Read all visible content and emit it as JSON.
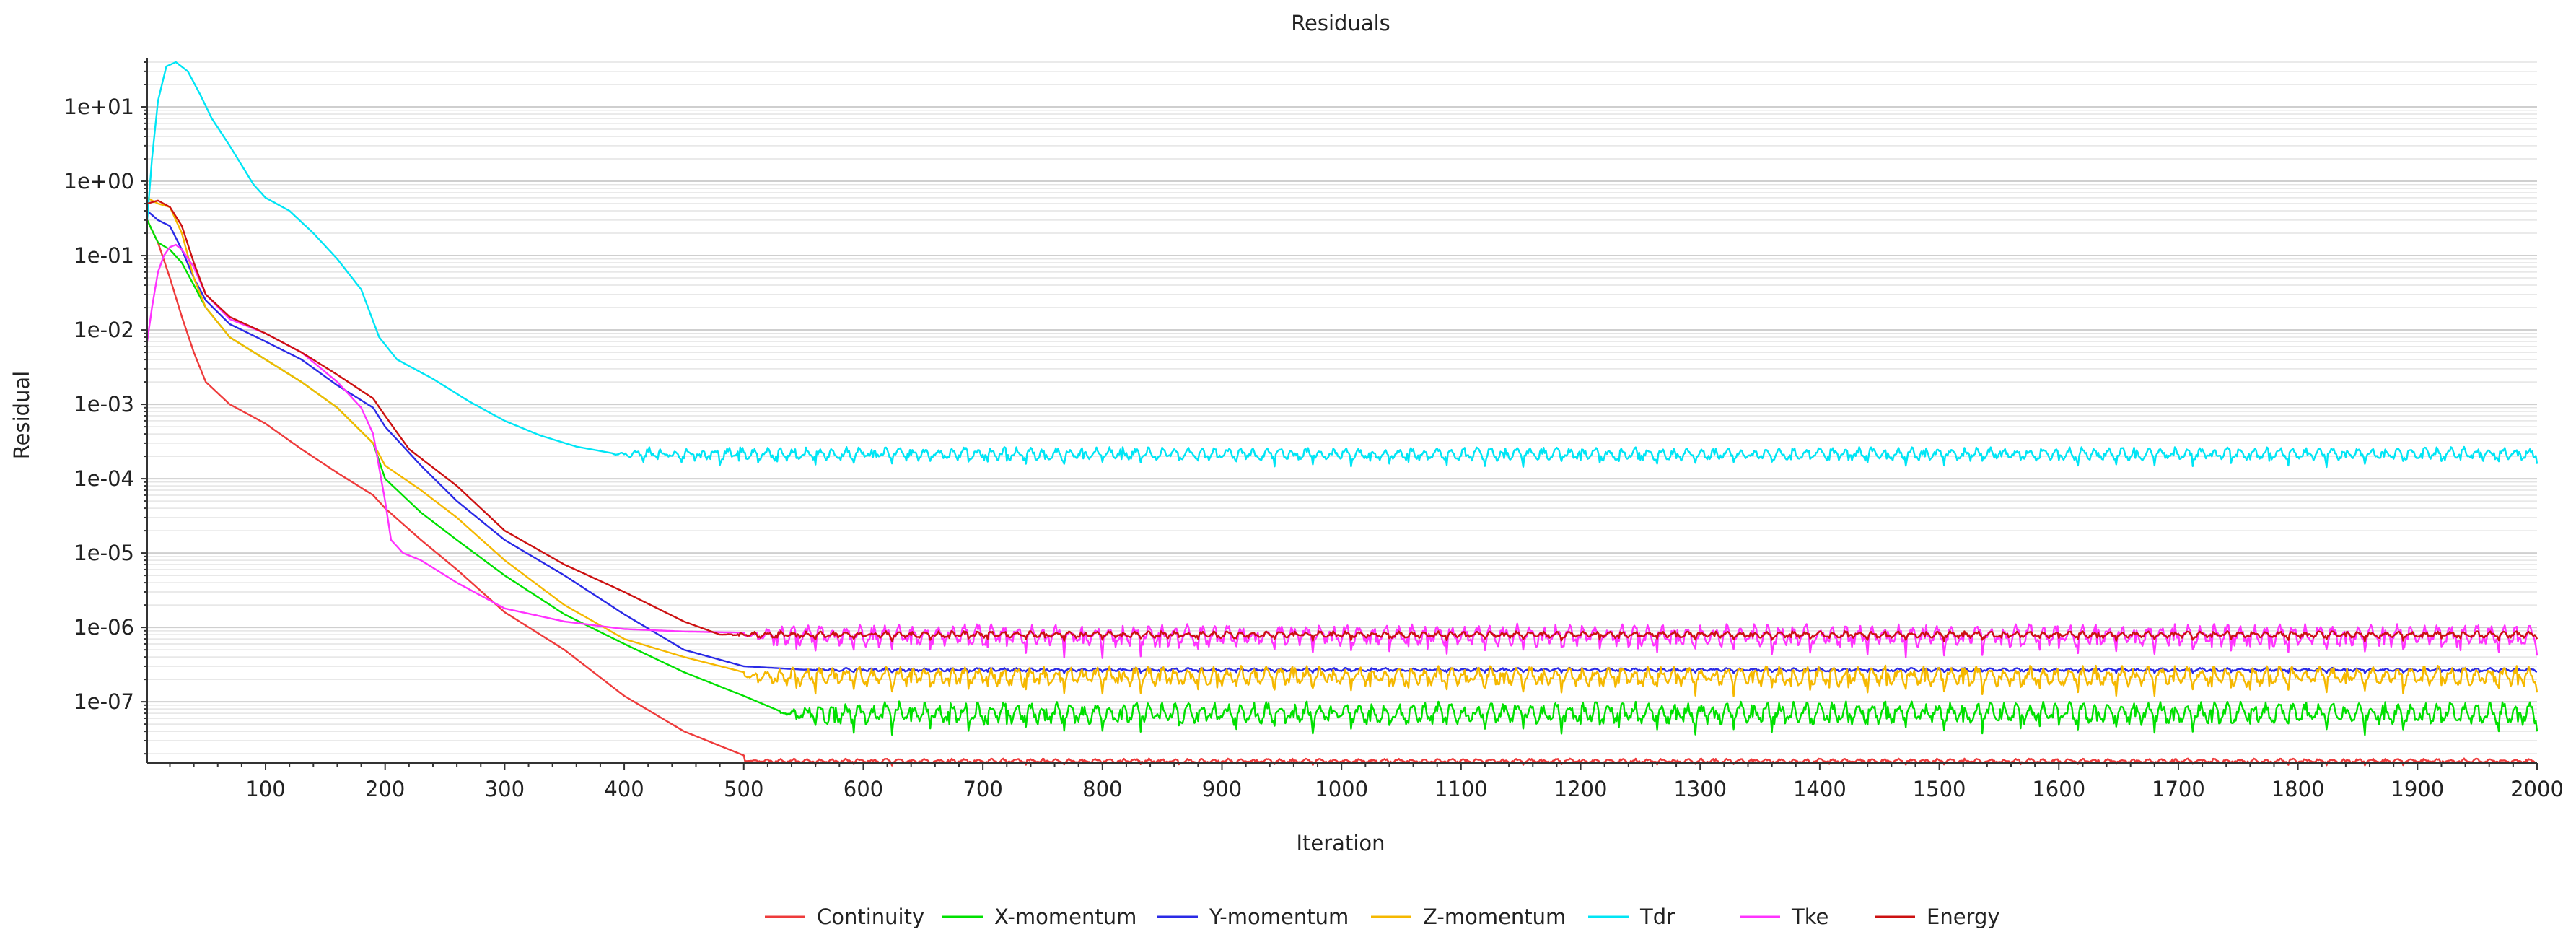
{
  "chart_data": {
    "type": "line",
    "title": "Residuals",
    "xlabel": "Iteration",
    "ylabel": "Residual",
    "y_scale": "log",
    "xlim": [
      1,
      2000
    ],
    "ylim": [
      1.5e-08,
      40
    ],
    "x_ticks": [
      100,
      200,
      300,
      400,
      500,
      600,
      700,
      800,
      900,
      1000,
      1100,
      1200,
      1300,
      1400,
      1500,
      1600,
      1700,
      1800,
      1900,
      2000
    ],
    "y_ticks": [
      {
        "value": 10,
        "label": "1e+01"
      },
      {
        "value": 1,
        "label": "1e+00"
      },
      {
        "value": 0.1,
        "label": "1e-01"
      },
      {
        "value": 0.01,
        "label": "1e-02"
      },
      {
        "value": 0.001,
        "label": "1e-03"
      },
      {
        "value": 0.0001,
        "label": "1e-04"
      },
      {
        "value": 1e-05,
        "label": "1e-05"
      },
      {
        "value": 1e-06,
        "label": "1e-06"
      },
      {
        "value": 1e-07,
        "label": "1e-07"
      }
    ],
    "grid": true,
    "legend_position": "bottom",
    "series": [
      {
        "name": "Continuity",
        "color": "#ee3b3b",
        "x": [
          1,
          10,
          20,
          30,
          40,
          50,
          70,
          100,
          130,
          160,
          190,
          200,
          230,
          260,
          300,
          350,
          400,
          450,
          500
        ],
        "y": [
          0.3,
          0.15,
          0.05,
          0.015,
          0.005,
          0.002,
          0.001,
          0.00055,
          0.00025,
          0.00012,
          6e-05,
          4e-05,
          1.5e-05,
          6e-06,
          1.6e-06,
          5e-07,
          1.2e-07,
          4e-08,
          1.9e-08
        ],
        "plateau": 1.6e-08,
        "osc_factor": 1.08
      },
      {
        "name": "X-momentum",
        "color": "#00e000",
        "x": [
          1,
          10,
          20,
          30,
          40,
          50,
          70,
          100,
          130,
          160,
          190,
          200,
          230,
          260,
          300,
          350,
          400,
          450,
          500,
          530
        ],
        "y": [
          0.3,
          0.15,
          0.12,
          0.08,
          0.04,
          0.02,
          0.008,
          0.004,
          0.002,
          0.0009,
          0.0003,
          0.0001,
          3.5e-05,
          1.5e-05,
          5e-06,
          1.5e-06,
          6e-07,
          2.5e-07,
          1.2e-07,
          7.5e-08
        ],
        "plateau": 7e-08,
        "osc_factor": 1.45
      },
      {
        "name": "Y-momentum",
        "color": "#2a2ae6",
        "x": [
          1,
          10,
          20,
          30,
          40,
          50,
          70,
          100,
          130,
          160,
          190,
          200,
          230,
          260,
          300,
          350,
          400,
          450,
          500,
          550
        ],
        "y": [
          0.4,
          0.3,
          0.25,
          0.12,
          0.05,
          0.025,
          0.012,
          0.007,
          0.004,
          0.0018,
          0.0009,
          0.0005,
          0.00015,
          5e-05,
          1.5e-05,
          5e-06,
          1.5e-06,
          5e-07,
          3e-07,
          2.7e-07
        ],
        "plateau": 2.7e-07,
        "osc_factor": 1.06
      },
      {
        "name": "Z-momentum",
        "color": "#f5b800",
        "x": [
          1,
          10,
          20,
          30,
          40,
          50,
          70,
          100,
          130,
          160,
          190,
          200,
          230,
          260,
          300,
          350,
          400,
          450,
          500
        ],
        "y": [
          0.6,
          0.5,
          0.45,
          0.2,
          0.05,
          0.02,
          0.008,
          0.004,
          0.002,
          0.0009,
          0.0003,
          0.00015,
          7e-05,
          3e-05,
          8e-06,
          2e-06,
          7e-07,
          4e-07,
          2.5e-07
        ],
        "plateau": 2.2e-07,
        "osc_factor": 1.4
      },
      {
        "name": "Tdr",
        "color": "#00e5f5",
        "x": [
          1,
          5,
          10,
          17,
          25,
          35,
          45,
          55,
          70,
          90,
          100,
          120,
          140,
          160,
          180,
          195,
          210,
          240,
          270,
          300,
          330,
          360,
          390
        ],
        "y": [
          0.3,
          2,
          12,
          35,
          40,
          30,
          15,
          7,
          3,
          0.9,
          0.6,
          0.4,
          0.2,
          0.09,
          0.035,
          0.008,
          0.004,
          0.0022,
          0.0011,
          0.0006,
          0.00038,
          0.00027,
          0.00022
        ],
        "plateau": 0.000215,
        "osc_factor": 1.25
      },
      {
        "name": "Tke",
        "color": "#ff33ff",
        "x": [
          1,
          5,
          10,
          15,
          20,
          25,
          30,
          40,
          50,
          70,
          100,
          130,
          160,
          180,
          190,
          200,
          205,
          215,
          230,
          260,
          300,
          350,
          400,
          450,
          500
        ],
        "y": [
          0.007,
          0.02,
          0.06,
          0.1,
          0.13,
          0.14,
          0.12,
          0.07,
          0.03,
          0.014,
          0.009,
          0.005,
          0.002,
          0.0009,
          0.0004,
          5e-05,
          1.5e-05,
          1e-05,
          8e-06,
          4e-06,
          1.8e-06,
          1.2e-06,
          9.5e-07,
          8.8e-07,
          8.5e-07
        ],
        "plateau": 7.8e-07,
        "osc_factor": 1.45
      },
      {
        "name": "Energy",
        "color": "#cc1111",
        "x": [
          1,
          10,
          20,
          30,
          40,
          50,
          70,
          100,
          130,
          160,
          190,
          200,
          220,
          260,
          300,
          350,
          400,
          450,
          480
        ],
        "y": [
          0.5,
          0.55,
          0.45,
          0.25,
          0.08,
          0.03,
          0.015,
          0.009,
          0.005,
          0.0025,
          0.0012,
          0.0007,
          0.00025,
          8e-05,
          2e-05,
          7e-06,
          3e-06,
          1.2e-06,
          8e-07
        ],
        "plateau": 8e-07,
        "osc_factor": 1.12
      }
    ]
  }
}
